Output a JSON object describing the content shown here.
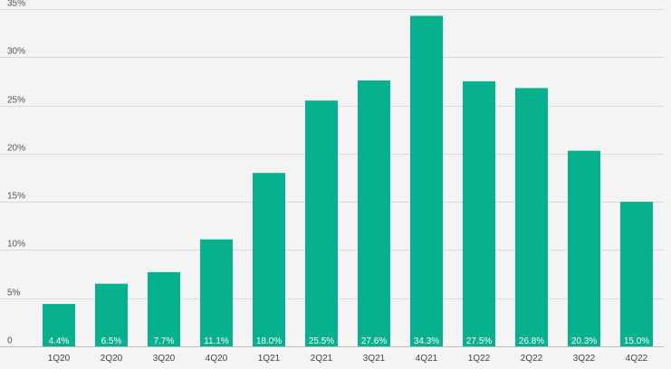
{
  "chart_data": {
    "type": "bar",
    "categories": [
      "1Q20",
      "2Q20",
      "3Q20",
      "4Q20",
      "1Q21",
      "2Q21",
      "3Q21",
      "4Q21",
      "1Q22",
      "2Q22",
      "3Q22",
      "4Q22"
    ],
    "values": [
      4.4,
      6.5,
      7.7,
      11.1,
      18.0,
      25.5,
      27.6,
      34.3,
      27.5,
      26.8,
      20.3,
      15.0
    ],
    "data_labels": [
      "4.4%",
      "6.5%",
      "7.7%",
      "11.1%",
      "18.0%",
      "25.5%",
      "27.6%",
      "34.3%",
      "27.5%",
      "26.8%",
      "20.3%",
      "15.0%"
    ],
    "y_ticks": [
      0,
      5,
      10,
      15,
      20,
      25,
      30,
      35
    ],
    "y_tick_labels": [
      "0",
      "5%",
      "10%",
      "15%",
      "20%",
      "25%",
      "30%",
      "35%"
    ],
    "ylim": [
      0,
      35
    ],
    "grid": true,
    "legend": "none",
    "title": "",
    "xlabel": "",
    "ylabel": "",
    "colors": {
      "bar": "#07b18d",
      "background": "#f4f4f4",
      "grid": "#d9d9d9"
    }
  }
}
